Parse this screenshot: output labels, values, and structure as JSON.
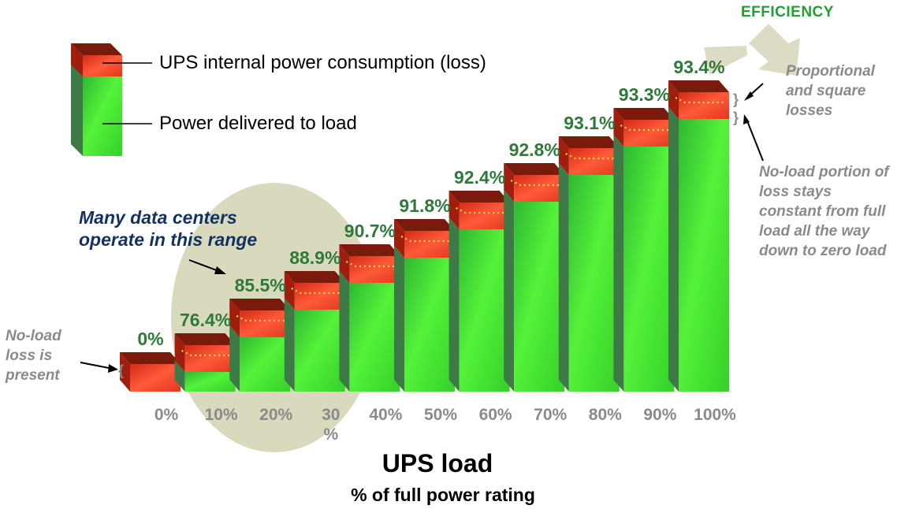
{
  "chart_data": {
    "type": "bar",
    "stacked": true,
    "categories": [
      "0%",
      "10%",
      "20%",
      "30\n%",
      "40%",
      "50%",
      "60%",
      "70%",
      "80%",
      "90%",
      "100%"
    ],
    "series": [
      {
        "name": "UPS internal power consumption (loss)",
        "color": "#e8321a"
      },
      {
        "name": "Power delivered to load",
        "color": "#44dd2a"
      }
    ],
    "efficiency_labels": [
      "0%",
      "76.4%",
      "85.5%",
      "88.9%",
      "90.7%",
      "91.8%",
      "92.4%",
      "92.8%",
      "93.1%",
      "93.3%",
      "93.4%"
    ],
    "efficiency": [
      0,
      76.4,
      85.5,
      88.9,
      90.7,
      91.8,
      92.4,
      92.8,
      93.1,
      93.3,
      93.4
    ],
    "xlabel": "UPS load",
    "xsublabel": "% of full power rating",
    "legend_position": "top-left"
  },
  "annotations": {
    "efficiency_arrow": "EFFICIENCY",
    "proportional": "Proportional and square losses",
    "noload_portion": "No-load portion of  loss stays constant from full load all the way down to zero load",
    "noload_present": "No-load loss is present",
    "datacenters": "Many data centers operate in this range"
  },
  "colors": {
    "loss_front": "#e8321a",
    "loss_top": "#7a1a0c",
    "load_front": "#44ee2a",
    "load_side": "#3d7a45",
    "value_label": "#2f7a3a",
    "highlight_circle": "#d9d9be",
    "efficiency_arrow": "#dcdcc4"
  }
}
